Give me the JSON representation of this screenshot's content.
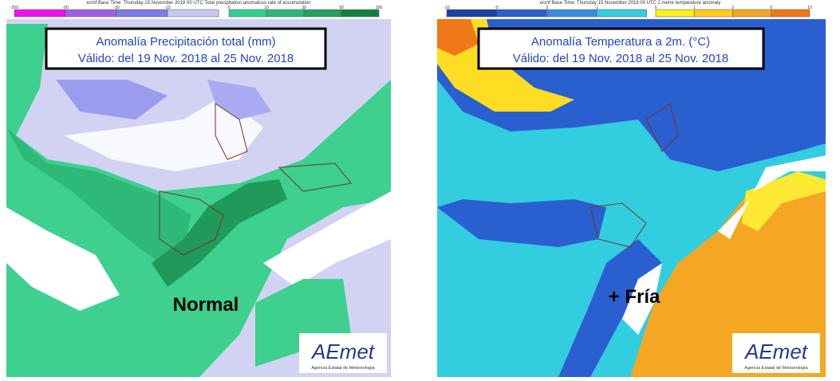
{
  "maps": [
    {
      "header": "ecmf Base Time: Thursday 15 November 2018 00 UTC Total precipitation anomalous rate of accumulation",
      "legend": {
        "negative_ticks": [
          "-200",
          "-90",
          "-30",
          "-10"
        ],
        "positive_ticks": [
          "0",
          "10",
          "30",
          "90",
          "200"
        ]
      },
      "title": "Anomalía Precipitación total (mm)",
      "subtitle": "Válido: del 19 Nov. 2018 al 25 Nov. 2018",
      "label": "Normal",
      "logo": "AEmet",
      "agency": "Agencia Estatal de Meteorología"
    },
    {
      "header": "ecmf Base Time: Thursday 15 November 2018 00 UTC 2 metre temperature anomaly",
      "legend": {
        "negative_ticks": [
          "-10",
          "-5",
          "-3",
          "-1"
        ],
        "positive_ticks": [
          "0",
          "1",
          "3",
          "5",
          "10"
        ]
      },
      "title": "Anomalía Temperatura a 2m. (°C)",
      "subtitle": "Válido: del 19 Nov. 2018 al 25 Nov. 2018",
      "label": "+ Fría",
      "logo": "AEmet",
      "agency": "Agencia Estatal de Meteorología"
    }
  ]
}
